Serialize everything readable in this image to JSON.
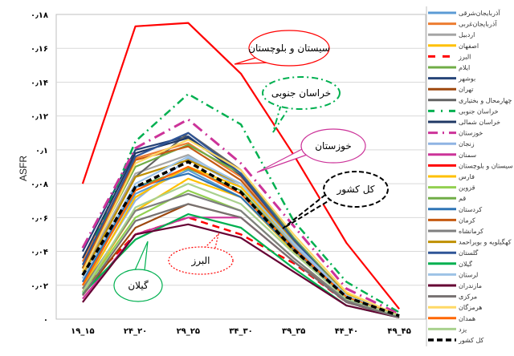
{
  "chart_data": {
    "type": "line",
    "title": "",
    "xlabel": "",
    "ylabel": "ASFR",
    "ylim": [
      0,
      0.18
    ],
    "grid": true,
    "legend_position": "right",
    "categories": [
      "۱۹_۱۵",
      "۲۴_۲۰",
      "۲۹_۲۵",
      "۳۴_۳۰",
      "۳۹_۳۵",
      "۴۴_۴۰",
      "۴۹_۴۵"
    ],
    "y_ticks": [
      {
        "value": 0,
        "label": "٠"
      },
      {
        "value": 0.02,
        "label": "٠٫٠٢"
      },
      {
        "value": 0.04,
        "label": "٠٫٠۴"
      },
      {
        "value": 0.06,
        "label": "٠٫٠۶"
      },
      {
        "value": 0.08,
        "label": "٠٫٠٨"
      },
      {
        "value": 0.1,
        "label": "٠٫١"
      },
      {
        "value": 0.12,
        "label": "٠٫١٢"
      },
      {
        "value": 0.14,
        "label": "٠٫١۴"
      },
      {
        "value": 0.16,
        "label": "٠٫١۶"
      },
      {
        "value": 0.18,
        "label": "٠٫١٨"
      }
    ],
    "series": [
      {
        "name": "آذربایجان‌شرقی",
        "color": "#5B9BD5",
        "dash": "solid",
        "values": [
          0.022,
          0.074,
          0.088,
          0.072,
          0.04,
          0.012,
          0.002
        ]
      },
      {
        "name": "آذربایجان‌غربی",
        "color": "#ED7D31",
        "dash": "solid",
        "values": [
          0.034,
          0.095,
          0.104,
          0.084,
          0.047,
          0.015,
          0.002
        ]
      },
      {
        "name": "اردبیل",
        "color": "#A5A5A5",
        "dash": "solid",
        "values": [
          0.028,
          0.086,
          0.097,
          0.078,
          0.043,
          0.013,
          0.002
        ]
      },
      {
        "name": "اصفهان",
        "color": "#FFC000",
        "dash": "solid",
        "values": [
          0.016,
          0.064,
          0.083,
          0.072,
          0.04,
          0.012,
          0.002
        ]
      },
      {
        "name": "البرز",
        "color": "#FF0000",
        "dash": "longdash",
        "values": [
          0.018,
          0.05,
          0.06,
          0.05,
          0.033,
          0.01,
          0.001
        ]
      },
      {
        "name": "ایلام",
        "color": "#70AD47",
        "dash": "solid",
        "values": [
          0.024,
          0.078,
          0.089,
          0.076,
          0.042,
          0.013,
          0.002
        ]
      },
      {
        "name": "بوشهر",
        "color": "#264478",
        "dash": "solid",
        "values": [
          0.04,
          0.1,
          0.108,
          0.085,
          0.047,
          0.014,
          0.002
        ]
      },
      {
        "name": "تهران",
        "color": "#9E480E",
        "dash": "solid",
        "values": [
          0.014,
          0.054,
          0.068,
          0.06,
          0.034,
          0.011,
          0.002
        ]
      },
      {
        "name": "چهارمحال و بختیاری",
        "color": "#636363",
        "dash": "solid",
        "values": [
          0.026,
          0.084,
          0.11,
          0.088,
          0.048,
          0.014,
          0.002
        ]
      },
      {
        "name": "خراسان جنوبی",
        "color": "#00B050",
        "dash": "dashdot",
        "values": [
          0.03,
          0.105,
          0.133,
          0.115,
          0.058,
          0.022,
          0.004
        ]
      },
      {
        "name": "خراسان شمالی",
        "color": "#1F3864",
        "dash": "solid",
        "values": [
          0.036,
          0.098,
          0.107,
          0.086,
          0.048,
          0.014,
          0.002
        ]
      },
      {
        "name": "خوزستان",
        "color": "#CC3399",
        "dash": "dashdot2",
        "values": [
          0.042,
          0.101,
          0.118,
          0.092,
          0.055,
          0.018,
          0.003
        ]
      },
      {
        "name": "زنجان",
        "color": "#8FB4E3",
        "dash": "solid",
        "values": [
          0.02,
          0.07,
          0.095,
          0.078,
          0.044,
          0.013,
          0.002
        ]
      },
      {
        "name": "سمنان",
        "color": "#CC3399",
        "dash": "solid",
        "values": [
          0.012,
          0.05,
          0.06,
          0.06,
          0.034,
          0.01,
          0.001
        ]
      },
      {
        "name": "سیستان و بلوچستان",
        "color": "#FF0000",
        "dash": "solid",
        "values": [
          0.08,
          0.173,
          0.175,
          0.145,
          0.097,
          0.045,
          0.006
        ]
      },
      {
        "name": "فارس",
        "color": "#FFC000",
        "dash": "solid",
        "values": [
          0.018,
          0.072,
          0.09,
          0.078,
          0.045,
          0.015,
          0.002
        ]
      },
      {
        "name": "قزوین",
        "color": "#92D050",
        "dash": "solid",
        "values": [
          0.016,
          0.06,
          0.076,
          0.064,
          0.036,
          0.011,
          0.002
        ]
      },
      {
        "name": "قم",
        "color": "#70AD47",
        "dash": "solid",
        "values": [
          0.03,
          0.09,
          0.103,
          0.086,
          0.048,
          0.014,
          0.002
        ]
      },
      {
        "name": "کردستان",
        "color": "#2E75B6",
        "dash": "solid",
        "values": [
          0.022,
          0.078,
          0.086,
          0.072,
          0.041,
          0.013,
          0.002
        ]
      },
      {
        "name": "کرمان",
        "color": "#C55A11",
        "dash": "solid",
        "values": [
          0.03,
          0.094,
          0.102,
          0.082,
          0.046,
          0.014,
          0.002
        ]
      },
      {
        "name": "کرمانشاه",
        "color": "#7F7F7F",
        "dash": "solid",
        "values": [
          0.018,
          0.064,
          0.074,
          0.064,
          0.036,
          0.011,
          0.002
        ]
      },
      {
        "name": "کهگیلویه و بویراحمد",
        "color": "#BF9000",
        "dash": "solid",
        "values": [
          0.026,
          0.084,
          0.094,
          0.08,
          0.046,
          0.014,
          0.002
        ]
      },
      {
        "name": "گلستان",
        "color": "#2F5597",
        "dash": "solid",
        "values": [
          0.032,
          0.096,
          0.11,
          0.086,
          0.047,
          0.013,
          0.002
        ]
      },
      {
        "name": "گیلان",
        "color": "#00B050",
        "dash": "solid",
        "values": [
          0.015,
          0.047,
          0.062,
          0.054,
          0.03,
          0.008,
          0.001
        ]
      },
      {
        "name": "لرستان",
        "color": "#9DC3E6",
        "dash": "solid",
        "values": [
          0.024,
          0.08,
          0.096,
          0.08,
          0.045,
          0.014,
          0.002
        ]
      },
      {
        "name": "مازندران",
        "color": "#660033",
        "dash": "solid",
        "values": [
          0.01,
          0.05,
          0.056,
          0.048,
          0.028,
          0.008,
          0.001
        ]
      },
      {
        "name": "مرکزی",
        "color": "#767171",
        "dash": "solid",
        "values": [
          0.014,
          0.058,
          0.068,
          0.06,
          0.034,
          0.01,
          0.001
        ]
      },
      {
        "name": "هرمزگان",
        "color": "#FFD966",
        "dash": "solid",
        "values": [
          0.028,
          0.092,
          0.106,
          0.088,
          0.05,
          0.016,
          0.002
        ]
      },
      {
        "name": "همدان",
        "color": "#FF6600",
        "dash": "solid",
        "values": [
          0.02,
          0.076,
          0.09,
          0.074,
          0.042,
          0.013,
          0.002
        ]
      },
      {
        "name": "یزد",
        "color": "#A9D18E",
        "dash": "solid",
        "values": [
          0.016,
          0.066,
          0.08,
          0.068,
          0.039,
          0.012,
          0.002
        ]
      },
      {
        "name": "کل کشور",
        "color": "#000000",
        "dash": "heavydash",
        "values": [
          0.026,
          0.078,
          0.093,
          0.075,
          0.041,
          0.013,
          0.002
        ]
      }
    ],
    "annotations": [
      {
        "text": "سیستان و بلوچستان",
        "color": "#FF0000",
        "style": "solid",
        "series": "سیستان و بلوچستان"
      },
      {
        "text": "خراسان جنوبی",
        "color": "#00B050",
        "style": "dashdot",
        "series": "خراسان جنوبی"
      },
      {
        "text": "خوزستان",
        "color": "#CC3399",
        "style": "solid",
        "series": "خوزستان"
      },
      {
        "text": "کل کشور",
        "color": "#000000",
        "style": "dashed",
        "series": "کل کشور"
      },
      {
        "text": "البرز",
        "color": "#FF0000",
        "style": "dotted",
        "series": "البرز"
      },
      {
        "text": "گیلان",
        "color": "#00B050",
        "style": "solid",
        "series": "گیلان"
      }
    ]
  }
}
